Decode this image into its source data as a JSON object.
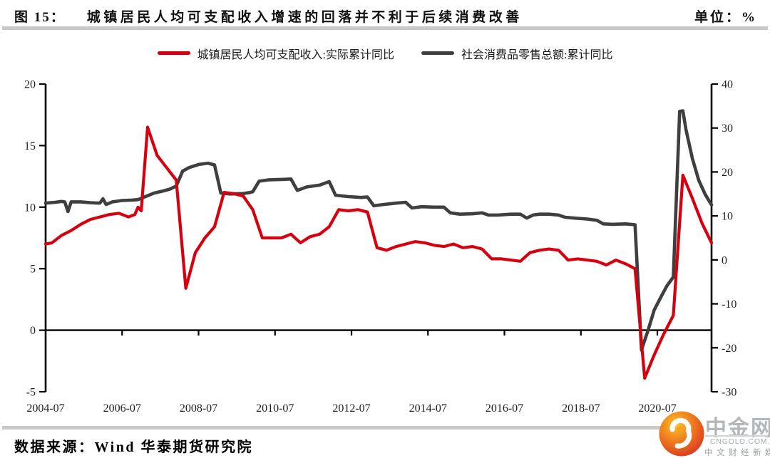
{
  "header": {
    "figure_label": "图 15：",
    "title": "城镇居民人均可支配收入增速的回落并不利于后续消费改善",
    "unit_label": "单位：%"
  },
  "source": "数据来源：Wind 华泰期货研究院",
  "logo": {
    "name": "中金网",
    "domain": "CNGOLD.COM.CN",
    "tagline": "中文财经新媒体"
  },
  "chart_data": {
    "type": "line",
    "title": "城镇居民人均可支配收入增速的回落并不利于后续消费改善",
    "unit": "%",
    "grid": false,
    "legend_position": "top-center",
    "x_axis": {
      "start": "2004-07",
      "end": "2021-12",
      "tick_labels": [
        "2004-07",
        "2006-07",
        "2008-07",
        "2010-07",
        "2012-07",
        "2014-07",
        "2016-07",
        "2018-07",
        "2020-07"
      ]
    },
    "left_axis": {
      "min": -5,
      "max": 20,
      "ticks": [
        20,
        15,
        10,
        5,
        0,
        -5
      ]
    },
    "right_axis": {
      "min": -30,
      "max": 40,
      "ticks": [
        40,
        30,
        20,
        10,
        0,
        -10,
        -20,
        -30
      ]
    },
    "series": [
      {
        "name": "城镇居民人均可支配收入:实际累计同比",
        "axis": "left",
        "color": "#d7000f",
        "points": [
          [
            "2004-07",
            7.0
          ],
          [
            "2004-09",
            7.1
          ],
          [
            "2004-12",
            7.7
          ],
          [
            "2005-03",
            8.1
          ],
          [
            "2005-06",
            8.6
          ],
          [
            "2005-09",
            9.0
          ],
          [
            "2005-12",
            9.2
          ],
          [
            "2006-03",
            9.4
          ],
          [
            "2006-06",
            9.5
          ],
          [
            "2006-09",
            9.2
          ],
          [
            "2006-11",
            9.4
          ],
          [
            "2006-12",
            10.0
          ],
          [
            "2007-01",
            9.7
          ],
          [
            "2007-03",
            16.5
          ],
          [
            "2007-06",
            14.2
          ],
          [
            "2007-09",
            13.2
          ],
          [
            "2007-12",
            12.2
          ],
          [
            "2008-03",
            3.4
          ],
          [
            "2008-06",
            6.3
          ],
          [
            "2008-09",
            7.5
          ],
          [
            "2008-12",
            8.4
          ],
          [
            "2009-03",
            11.2
          ],
          [
            "2009-06",
            11.1
          ],
          [
            "2009-09",
            10.9
          ],
          [
            "2009-12",
            9.8
          ],
          [
            "2010-03",
            7.5
          ],
          [
            "2010-06",
            7.5
          ],
          [
            "2010-09",
            7.5
          ],
          [
            "2010-12",
            7.8
          ],
          [
            "2011-03",
            7.1
          ],
          [
            "2011-06",
            7.6
          ],
          [
            "2011-09",
            7.8
          ],
          [
            "2011-12",
            8.4
          ],
          [
            "2012-03",
            9.8
          ],
          [
            "2012-06",
            9.7
          ],
          [
            "2012-09",
            9.8
          ],
          [
            "2012-12",
            9.6
          ],
          [
            "2013-03",
            6.7
          ],
          [
            "2013-06",
            6.5
          ],
          [
            "2013-09",
            6.8
          ],
          [
            "2013-12",
            7.0
          ],
          [
            "2014-03",
            7.2
          ],
          [
            "2014-06",
            7.1
          ],
          [
            "2014-09",
            6.9
          ],
          [
            "2014-12",
            6.8
          ],
          [
            "2015-03",
            7.0
          ],
          [
            "2015-06",
            6.7
          ],
          [
            "2015-09",
            6.8
          ],
          [
            "2015-12",
            6.6
          ],
          [
            "2016-03",
            5.8
          ],
          [
            "2016-06",
            5.8
          ],
          [
            "2016-09",
            5.7
          ],
          [
            "2016-12",
            5.6
          ],
          [
            "2017-03",
            6.3
          ],
          [
            "2017-06",
            6.5
          ],
          [
            "2017-09",
            6.6
          ],
          [
            "2017-12",
            6.5
          ],
          [
            "2018-03",
            5.7
          ],
          [
            "2018-06",
            5.8
          ],
          [
            "2018-09",
            5.7
          ],
          [
            "2018-12",
            5.6
          ],
          [
            "2019-03",
            5.3
          ],
          [
            "2019-06",
            5.7
          ],
          [
            "2019-09",
            5.4
          ],
          [
            "2019-12",
            5.0
          ],
          [
            "2020-03",
            -3.9
          ],
          [
            "2020-06",
            -2.0
          ],
          [
            "2020-09",
            -0.3
          ],
          [
            "2020-12",
            1.2
          ],
          [
            "2021-03",
            12.6
          ],
          [
            "2021-06",
            10.7
          ],
          [
            "2021-09",
            8.7
          ],
          [
            "2021-12",
            7.1
          ]
        ]
      },
      {
        "name": "社会消费品零售总额:累计同比",
        "axis": "right",
        "color": "#3f3f3f",
        "points": [
          [
            "2004-07",
            12.9
          ],
          [
            "2004-10",
            13.1
          ],
          [
            "2004-12",
            13.3
          ],
          [
            "2005-01",
            13.2
          ],
          [
            "2005-02",
            11.0
          ],
          [
            "2005-03",
            13.2
          ],
          [
            "2005-06",
            13.2
          ],
          [
            "2005-09",
            13.0
          ],
          [
            "2005-12",
            12.9
          ],
          [
            "2006-01",
            13.9
          ],
          [
            "2006-02",
            12.6
          ],
          [
            "2006-04",
            13.2
          ],
          [
            "2006-07",
            13.5
          ],
          [
            "2006-10",
            13.6
          ],
          [
            "2006-12",
            13.7
          ],
          [
            "2007-02",
            14.3
          ],
          [
            "2007-05",
            15.2
          ],
          [
            "2007-08",
            15.7
          ],
          [
            "2007-10",
            16.1
          ],
          [
            "2007-12",
            16.8
          ],
          [
            "2008-02",
            20.2
          ],
          [
            "2008-04",
            21.0
          ],
          [
            "2008-07",
            21.7
          ],
          [
            "2008-10",
            22.0
          ],
          [
            "2008-12",
            21.6
          ],
          [
            "2009-02",
            15.2
          ],
          [
            "2009-05",
            15.0
          ],
          [
            "2009-09",
            15.1
          ],
          [
            "2009-11",
            15.3
          ],
          [
            "2009-12",
            15.5
          ],
          [
            "2010-02",
            17.9
          ],
          [
            "2010-05",
            18.2
          ],
          [
            "2010-09",
            18.3
          ],
          [
            "2010-12",
            18.4
          ],
          [
            "2011-02",
            15.8
          ],
          [
            "2011-05",
            16.6
          ],
          [
            "2011-09",
            17.0
          ],
          [
            "2011-12",
            17.8
          ],
          [
            "2012-02",
            14.7
          ],
          [
            "2012-06",
            14.4
          ],
          [
            "2012-10",
            14.2
          ],
          [
            "2012-12",
            14.3
          ],
          [
            "2013-02",
            12.3
          ],
          [
            "2013-05",
            12.6
          ],
          [
            "2013-09",
            12.9
          ],
          [
            "2013-12",
            13.1
          ],
          [
            "2014-02",
            11.8
          ],
          [
            "2014-05",
            12.1
          ],
          [
            "2014-09",
            12.0
          ],
          [
            "2014-12",
            12.0
          ],
          [
            "2015-02",
            10.7
          ],
          [
            "2015-05",
            10.4
          ],
          [
            "2015-09",
            10.5
          ],
          [
            "2015-12",
            10.7
          ],
          [
            "2016-02",
            10.2
          ],
          [
            "2016-05",
            10.2
          ],
          [
            "2016-09",
            10.4
          ],
          [
            "2016-12",
            10.4
          ],
          [
            "2017-02",
            9.5
          ],
          [
            "2017-04",
            10.2
          ],
          [
            "2017-06",
            10.4
          ],
          [
            "2017-09",
            10.4
          ],
          [
            "2017-12",
            10.2
          ],
          [
            "2018-02",
            9.7
          ],
          [
            "2018-05",
            9.5
          ],
          [
            "2018-09",
            9.3
          ],
          [
            "2018-12",
            9.0
          ],
          [
            "2019-02",
            8.2
          ],
          [
            "2019-05",
            8.1
          ],
          [
            "2019-09",
            8.2
          ],
          [
            "2019-12",
            8.0
          ],
          [
            "2020-02",
            -20.5
          ],
          [
            "2020-04",
            -16.2
          ],
          [
            "2020-06",
            -11.4
          ],
          [
            "2020-08",
            -8.6
          ],
          [
            "2020-10",
            -5.9
          ],
          [
            "2020-12",
            -3.9
          ],
          [
            "2021-02",
            33.8
          ],
          [
            "2021-03",
            33.9
          ],
          [
            "2021-04",
            29.6
          ],
          [
            "2021-06",
            23.0
          ],
          [
            "2021-08",
            18.1
          ],
          [
            "2021-10",
            14.9
          ],
          [
            "2021-12",
            12.5
          ]
        ]
      }
    ]
  }
}
